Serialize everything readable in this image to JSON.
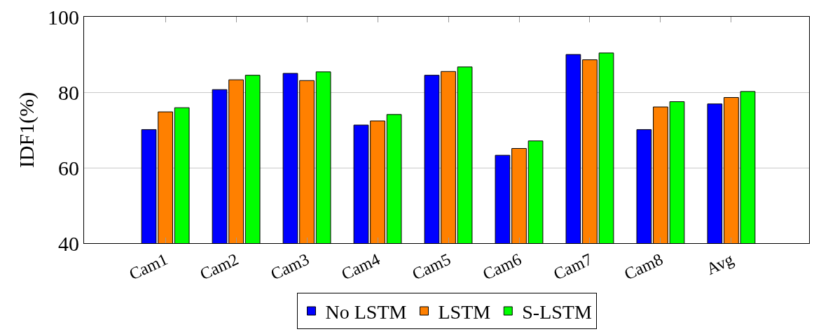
{
  "chart_data": {
    "type": "bar",
    "ylabel": "IDF1(%)",
    "categories": [
      "Cam1",
      "Cam2",
      "Cam3",
      "Cam4",
      "Cam5",
      "Cam6",
      "Cam7",
      "Cam8",
      "Avg"
    ],
    "series": [
      {
        "name": "No LSTM",
        "color": "#0000ff",
        "values": [
          70.1,
          80.7,
          85.0,
          71.3,
          84.5,
          63.3,
          90.0,
          70.1,
          76.9
        ]
      },
      {
        "name": "LSTM",
        "color": "#ff8000",
        "values": [
          74.8,
          83.3,
          83.1,
          72.4,
          85.5,
          65.1,
          88.6,
          76.1,
          78.6
        ]
      },
      {
        "name": "S-LSTM",
        "color": "#00ff00",
        "values": [
          75.9,
          84.5,
          85.4,
          74.1,
          86.7,
          67.1,
          90.4,
          77.5,
          80.2
        ]
      }
    ],
    "ylim": [
      40,
      100
    ],
    "yticks": [
      40,
      60,
      80,
      100
    ],
    "grid": "y",
    "legend": "bottom"
  }
}
